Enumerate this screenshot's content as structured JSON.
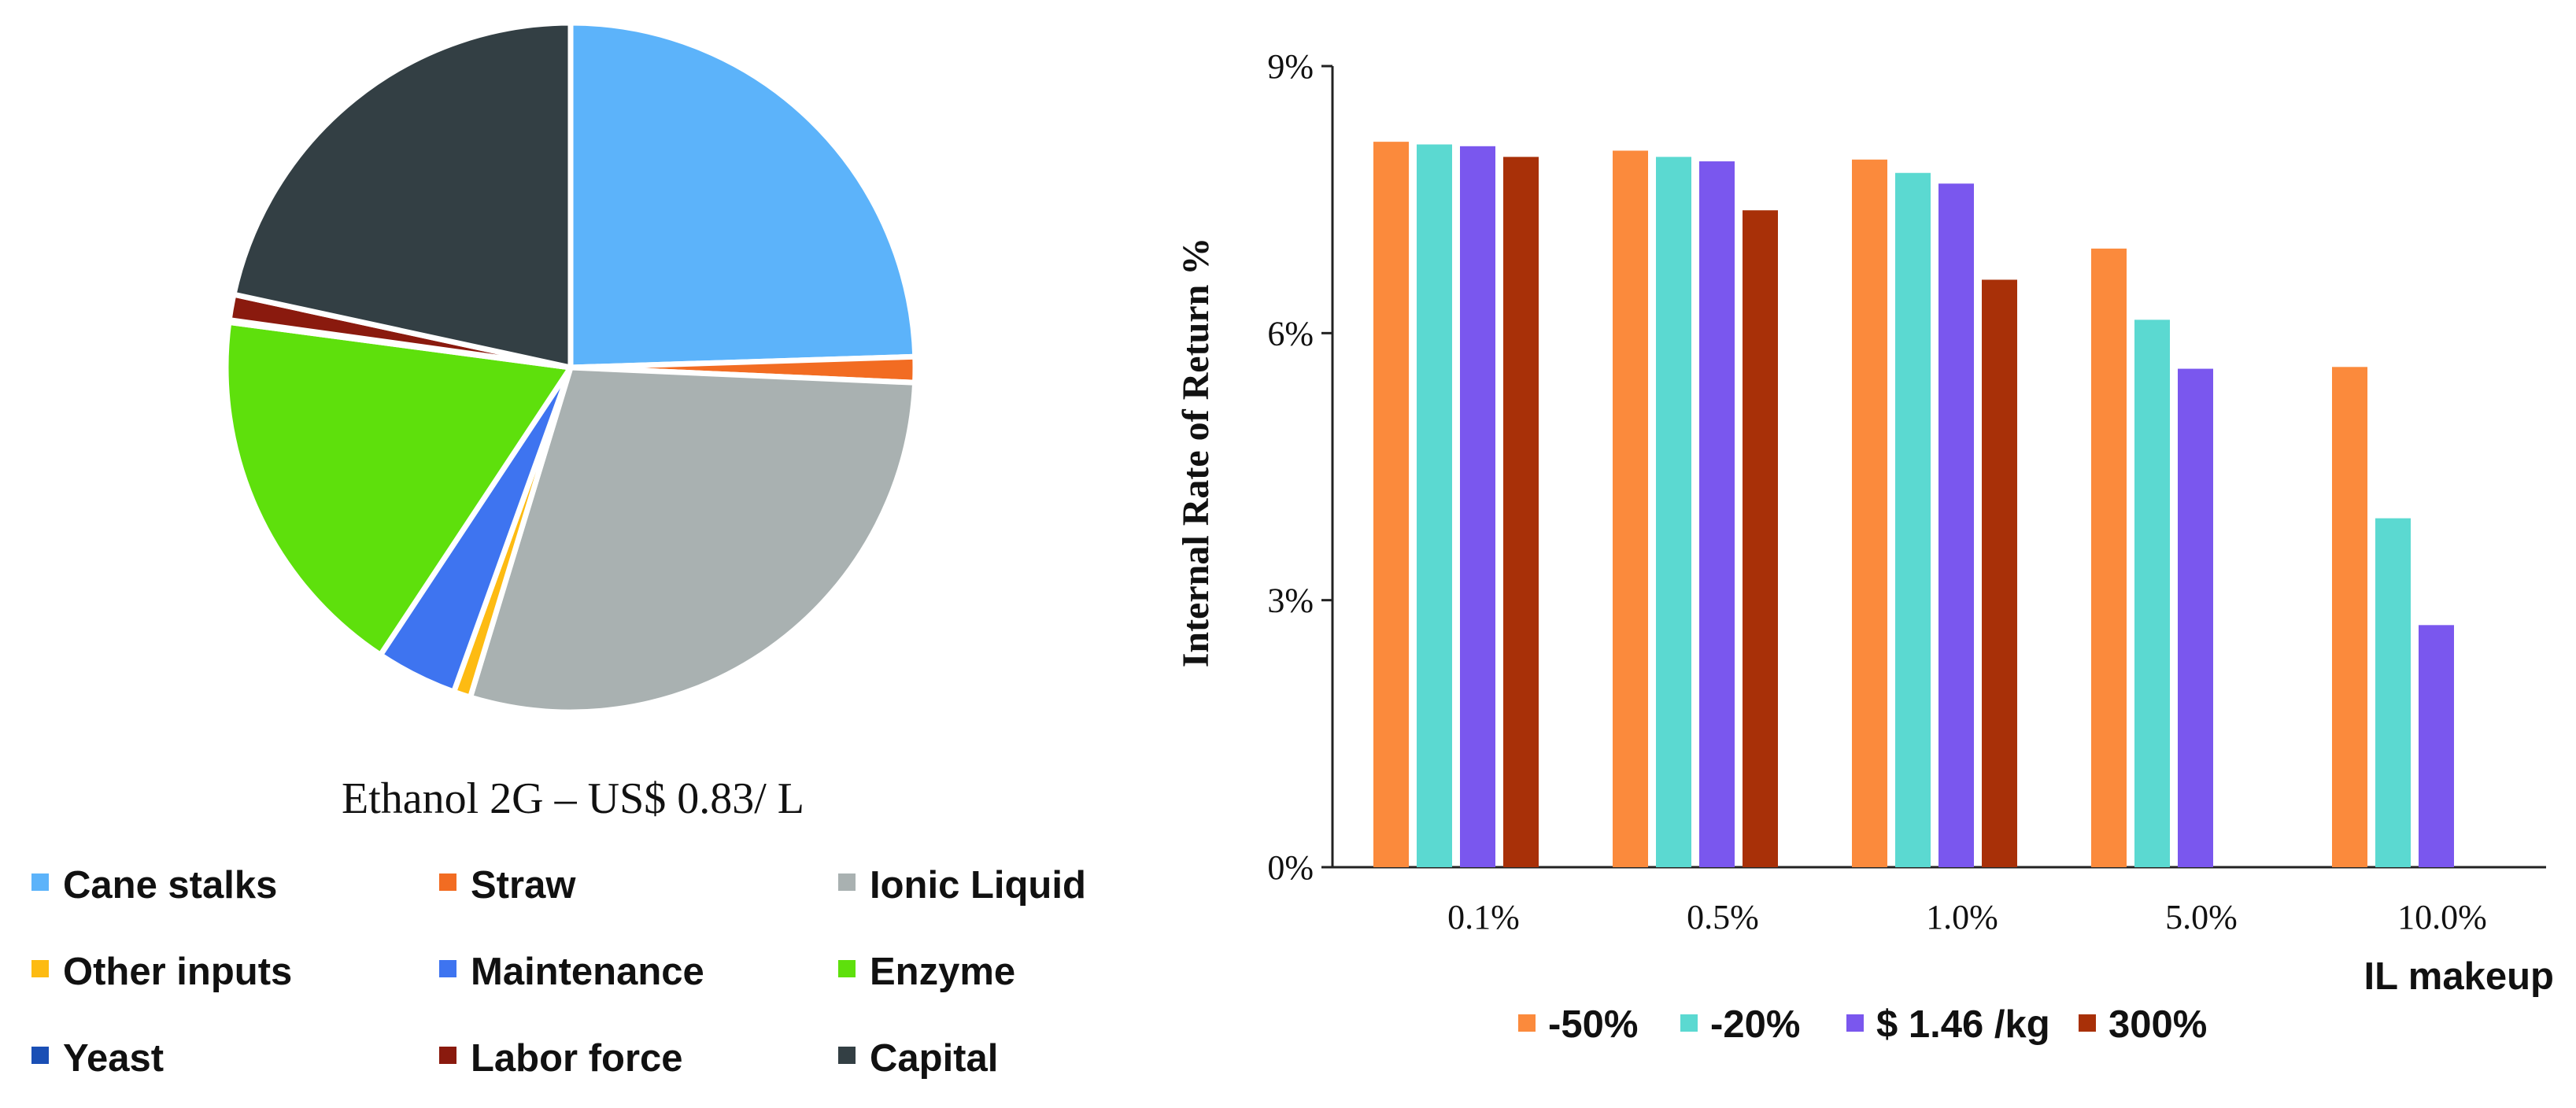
{
  "chart_data": [
    {
      "type": "pie",
      "title": "Ethanol 2G – US$ 0.83/ L",
      "categories": [
        "Cane stalks",
        "Straw",
        "Ionic Liquid",
        "Other inputs",
        "Maintenance",
        "Enzyme",
        "Yeast",
        "Labor force",
        "Capital"
      ],
      "values": [
        24.5,
        1.2,
        29.0,
        0.8,
        3.8,
        17.8,
        0.1,
        1.2,
        21.6
      ],
      "colors": [
        "#5cb3fa",
        "#f26c22",
        "#a9b1b1",
        "#fdbb12",
        "#3e74f0",
        "#5ee00c",
        "#1a4fb5",
        "#8a1a0e",
        "#333f44"
      ],
      "legend": [
        [
          "Cane stalks",
          "Straw",
          "Ionic Liquid"
        ],
        [
          "Other inputs",
          "Maintenance",
          "Enzyme"
        ],
        [
          "Yeast",
          "Labor force",
          "Capital"
        ]
      ]
    },
    {
      "type": "bar",
      "categories": [
        "0.1%",
        "0.5%",
        "1.0%",
        "5.0%",
        "10.0%"
      ],
      "series": [
        {
          "name": "-50%",
          "color": "#fb8a3c",
          "values": [
            8.15,
            8.05,
            7.95,
            6.95,
            5.62
          ]
        },
        {
          "name": "-20%",
          "color": "#5bd9d1",
          "values": [
            8.12,
            7.98,
            7.8,
            6.15,
            3.92
          ]
        },
        {
          "name": "$ 1.46 /kg",
          "color": "#7a57ee",
          "values": [
            8.1,
            7.93,
            7.68,
            5.6,
            2.72
          ]
        },
        {
          "name": "300%",
          "color": "#a83008",
          "values": [
            7.98,
            7.38,
            6.6,
            null,
            null
          ]
        }
      ],
      "ylabel": "Internal Rate of Return %",
      "xlabel": "IL makeup",
      "ylim": [
        0,
        9
      ],
      "yticks": [
        0,
        3,
        6,
        9
      ],
      "ytick_labels": [
        "0%",
        "3%",
        "6%",
        "9%"
      ],
      "grid": false,
      "legend_position": "bottom"
    }
  ]
}
